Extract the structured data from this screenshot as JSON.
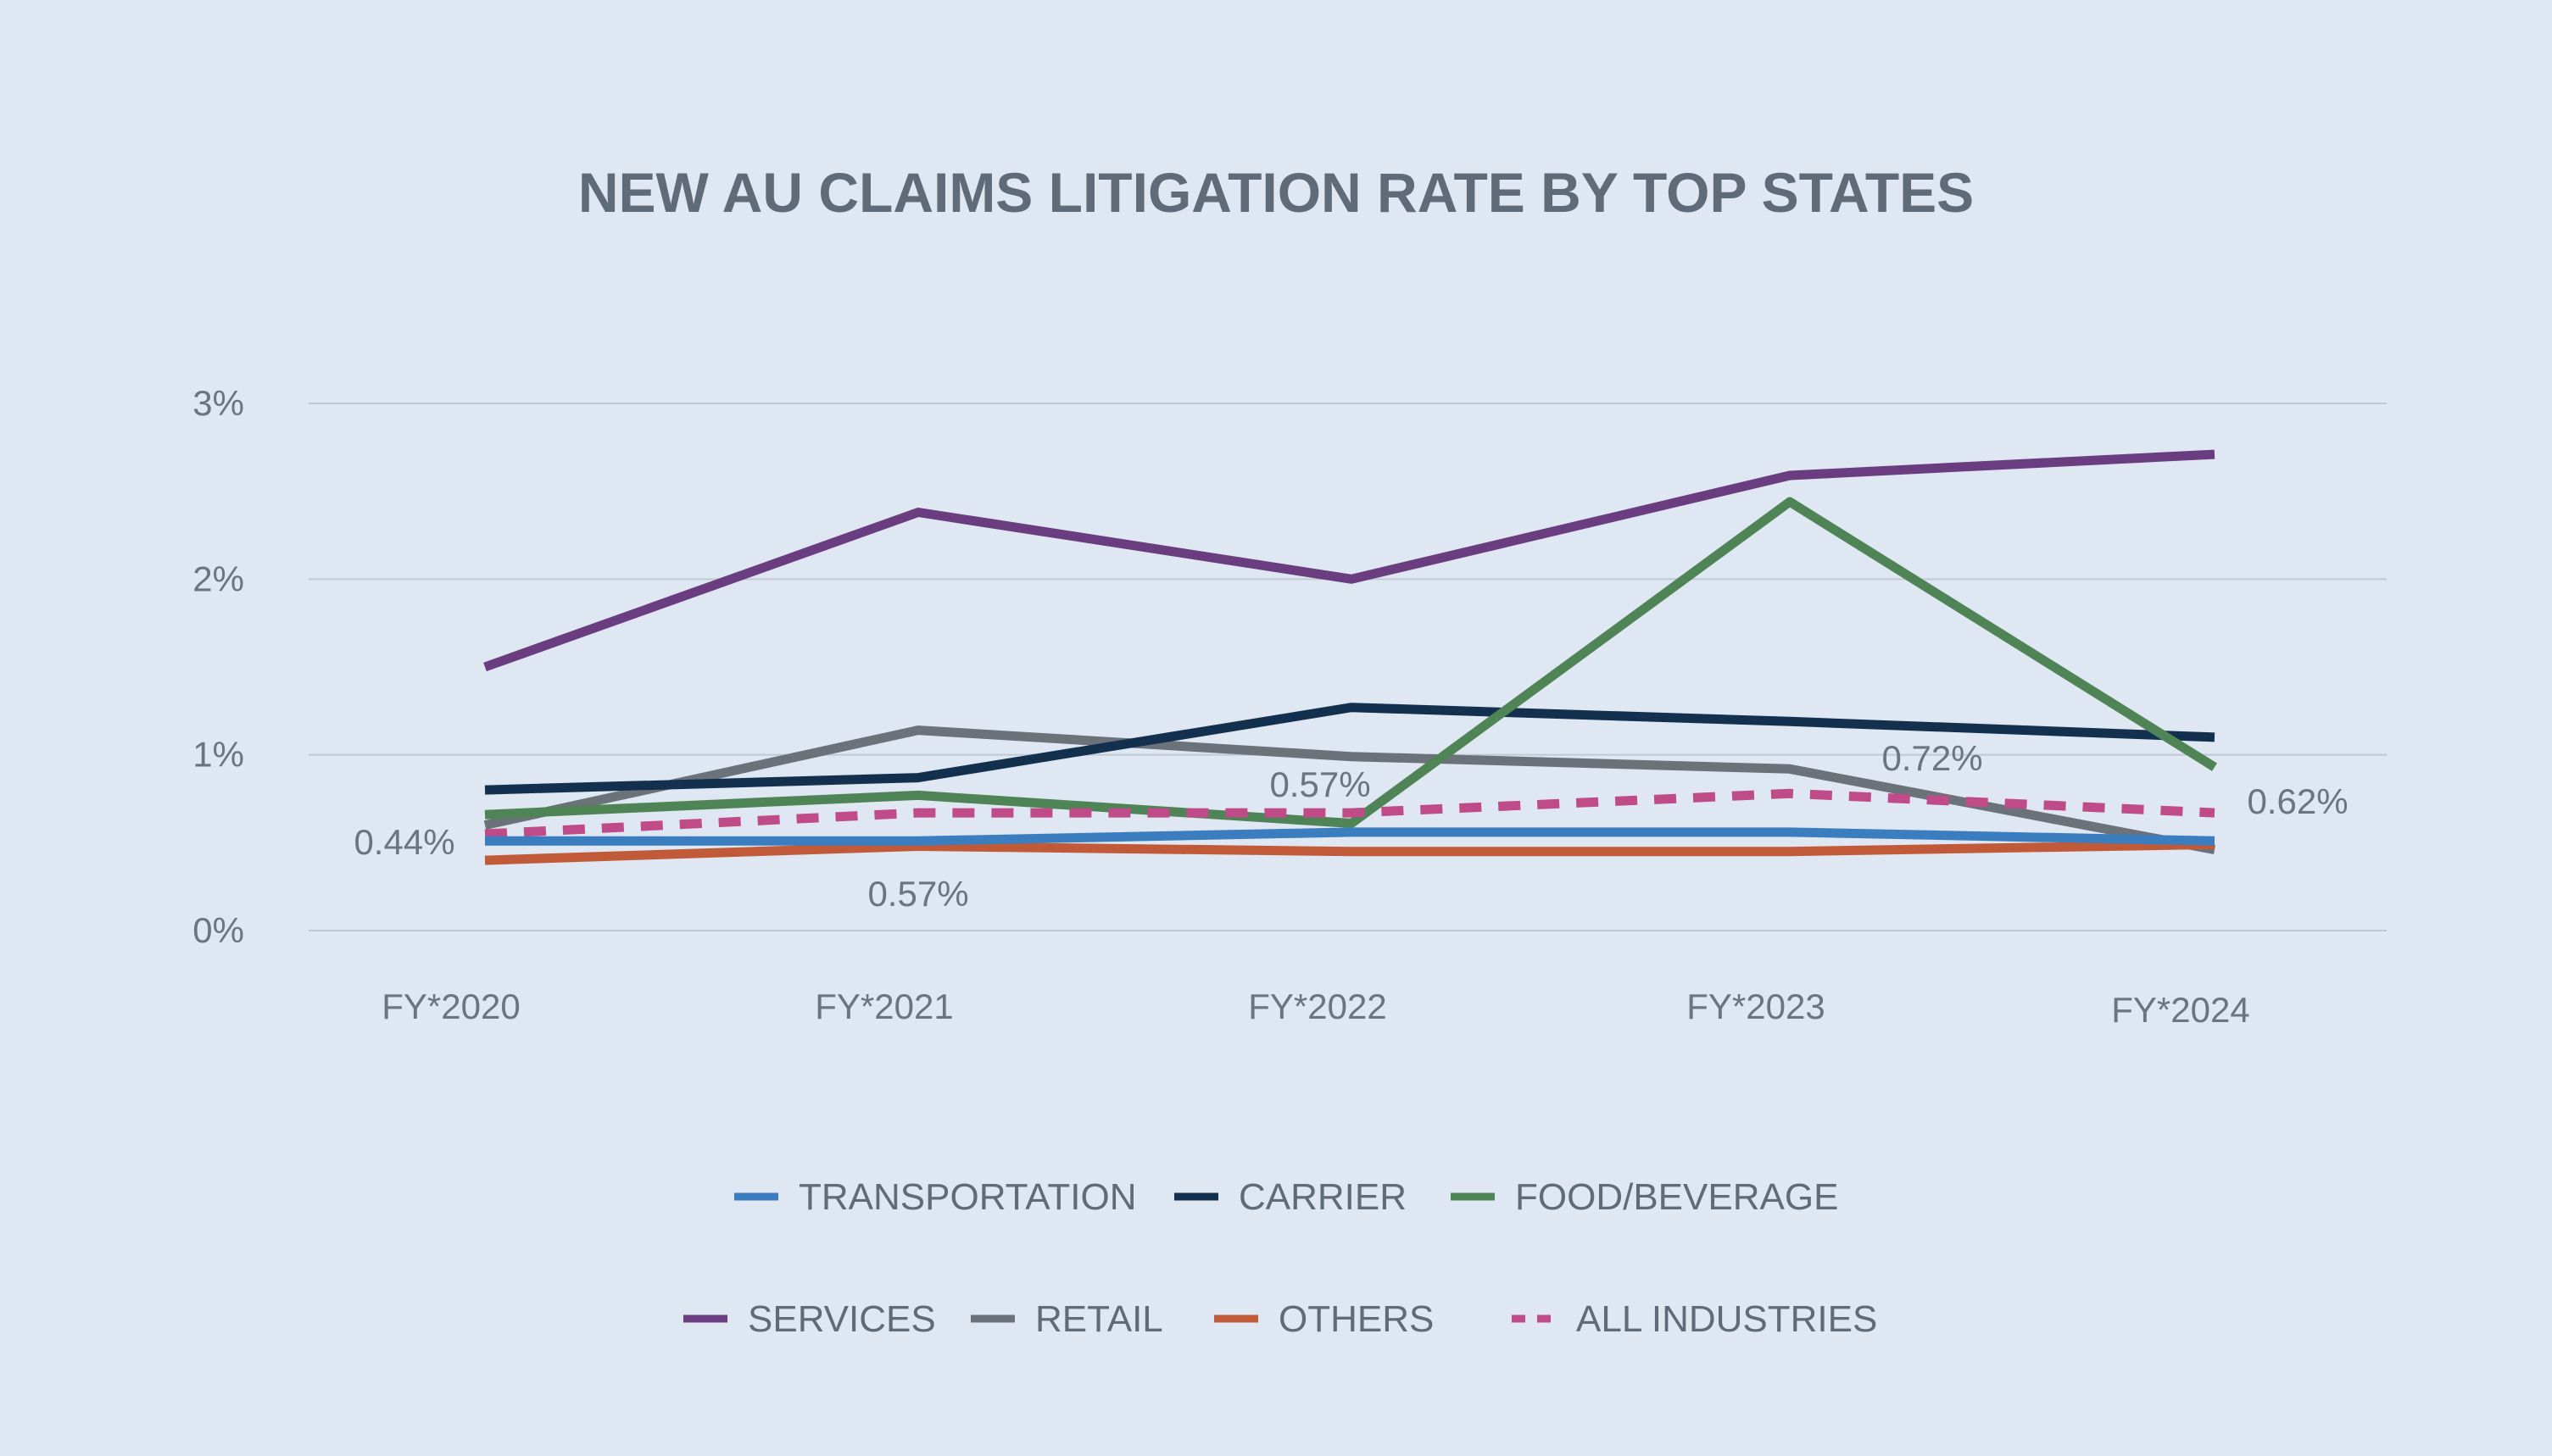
{
  "chart_data": {
    "type": "line",
    "title": "NEW AU CLAIMS LITIGATION RATE BY TOP STATES",
    "xlabel": "",
    "ylabel": "",
    "categories": [
      "FY*2020",
      "FY*2021",
      "FY*2022",
      "FY*2023",
      "FY*2024"
    ],
    "y_ticks": [
      "0%",
      "1%",
      "2%",
      "3%"
    ],
    "ylim": [
      0,
      3
    ],
    "grid": true,
    "legend_position": "bottom",
    "series": [
      {
        "name": "TRANSPORTATION",
        "color": "#3a7ebf",
        "dashed": false,
        "values": [
          0.51,
          0.51,
          0.56,
          0.56,
          0.51
        ]
      },
      {
        "name": "CARRIER",
        "color": "#14304f",
        "dashed": false,
        "values": [
          0.8,
          0.87,
          1.27,
          1.19,
          1.1
        ]
      },
      {
        "name": "FOOD/BEVERAGE",
        "color": "#4f8456",
        "dashed": false,
        "values": [
          0.66,
          0.77,
          0.61,
          2.44,
          0.93
        ]
      },
      {
        "name": "SERVICES",
        "color": "#6a3d80",
        "dashed": false,
        "values": [
          1.5,
          2.38,
          2.0,
          2.59,
          2.71
        ]
      },
      {
        "name": "RETAIL",
        "color": "#6c727a",
        "dashed": false,
        "values": [
          0.6,
          1.14,
          0.99,
          0.92,
          0.46
        ]
      },
      {
        "name": "OTHERS",
        "color": "#c15a38",
        "dashed": false,
        "values": [
          0.4,
          0.48,
          0.45,
          0.45,
          0.49
        ]
      },
      {
        "name": "ALL INDUSTRIES",
        "color": "#bf4b89",
        "dashed": true,
        "values": [
          0.55,
          0.67,
          0.67,
          0.78,
          0.67
        ]
      }
    ],
    "annotations": [
      {
        "text": "0.44%",
        "category": "FY*2020",
        "value": 0.44
      },
      {
        "text": "0.57%",
        "category": "FY*2021",
        "value": 0.57
      },
      {
        "text": "0.57%",
        "category": "FY*2022",
        "value": 0.57
      },
      {
        "text": "0.72%",
        "category": "FY*2023",
        "value": 0.72
      },
      {
        "text": "0.62%",
        "category": "FY*2024",
        "value": 0.62
      }
    ]
  }
}
